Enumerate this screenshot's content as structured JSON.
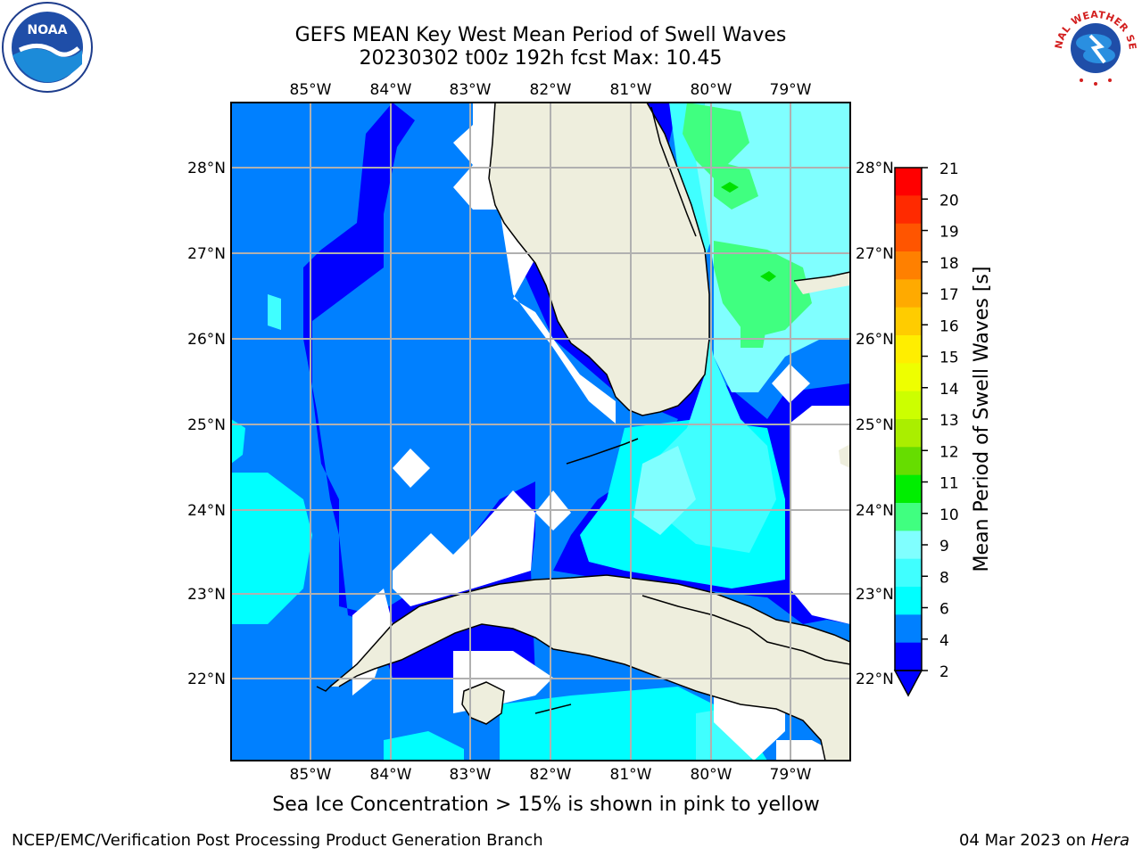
{
  "title": {
    "line1": "GEFS MEAN Key West Mean Period of Swell Waves",
    "line2": "20230302 t00z 192h fcst   Max: 10.45"
  },
  "map": {
    "lon_labels": [
      "85°W",
      "84°W",
      "83°W",
      "82°W",
      "81°W",
      "80°W",
      "79°W"
    ],
    "lat_labels": [
      "28°N",
      "27°N",
      "26°N",
      "25°N",
      "24°N",
      "23°N",
      "22°N"
    ],
    "colors": {
      "land": "#eeeedd",
      "c2_4": "#0000ff",
      "c4_6": "#0080ff",
      "c6_7": "#00ffff",
      "c7_8": "#40ffff",
      "c8_9": "#80ffff",
      "c9_10": "#40ff80",
      "c10_11": "#00e000",
      "grid": "#b0b0b0"
    }
  },
  "colorbar": {
    "label": "Mean Period of Swell Waves [s]",
    "ticks": [
      "21",
      "20",
      "19",
      "18",
      "17",
      "16",
      "15",
      "14",
      "13",
      "12",
      "11",
      "10",
      "9",
      "8",
      "6",
      "4",
      "2"
    ],
    "colors": [
      "#ff0000",
      "#ff2a00",
      "#ff5500",
      "#ff8000",
      "#ffaa00",
      "#ffcc00",
      "#ffee00",
      "#eeff00",
      "#ccff00",
      "#aaee00",
      "#66dd00",
      "#00ee00",
      "#40ff80",
      "#80ffff",
      "#40ffff",
      "#00ffff",
      "#0080ff",
      "#0000ff"
    ]
  },
  "caption": "Sea Ice Concentration > 15% is shown in pink to yellow",
  "footer": {
    "left": "NCEP/EMC/Verification Post Processing Product Generation Branch",
    "right_date": "04 Mar 2023 on ",
    "right_host": "Hera"
  },
  "logos": {
    "noaa": "NOAA",
    "nws": "NATIONAL WEATHER SERVICE"
  }
}
